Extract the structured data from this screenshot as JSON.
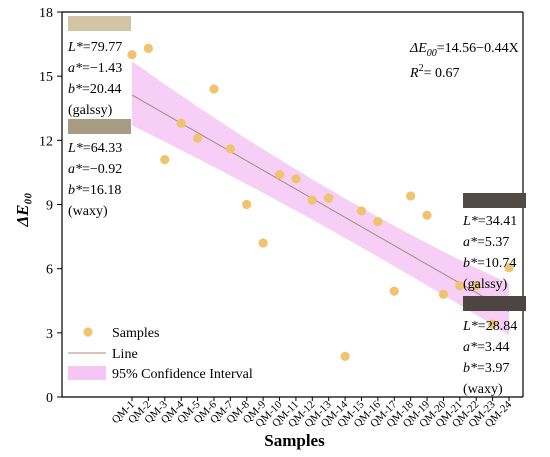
{
  "chart_data": {
    "type": "scatter",
    "xlabel": "Samples",
    "ylabel": "ΔE₀₀",
    "ylim": [
      0,
      18
    ],
    "yticks": [
      0,
      3,
      6,
      9,
      12,
      15,
      18
    ],
    "categories": [
      "QM-1",
      "QM-2",
      "QM-3",
      "QM-4",
      "QM-5",
      "QM-6",
      "QM-7",
      "QM-8",
      "QM-9",
      "QM-10",
      "QM-11",
      "QM-12",
      "QM-13",
      "QM-14",
      "QM-15",
      "QM-16",
      "QM-17",
      "QM-18",
      "QM-19",
      "QM-20",
      "QM-21",
      "QM-22",
      "QM-23",
      "QM-24"
    ],
    "series": [
      {
        "name": "Samples",
        "color": "#f0c36e",
        "x": [
          1,
          2,
          3,
          4,
          5,
          6,
          7,
          8,
          9,
          10,
          11,
          12,
          13,
          14,
          15,
          16,
          17,
          18,
          19,
          20,
          21,
          22,
          23,
          24
        ],
        "values": [
          16.0,
          16.3,
          11.1,
          12.8,
          12.1,
          14.4,
          11.6,
          9.0,
          7.2,
          10.4,
          10.2,
          9.2,
          9.3,
          1.9,
          8.7,
          8.2,
          4.95,
          9.4,
          8.5,
          4.8,
          5.2,
          5.2,
          3.4,
          6.05
        ]
      }
    ],
    "fit": {
      "name": "Line",
      "intercept": 14.56,
      "slope": -0.44,
      "color": "#a88a7a"
    },
    "confidence_band": {
      "name": "95% Confidence Interval",
      "color": "#f5c6f5",
      "lower_start": 12.7,
      "upper_start": 15.7,
      "lower_end": 2.9,
      "upper_end": 5.3
    },
    "equation": {
      "prefix": "ΔE",
      "sub": "00",
      "rest": "=14.56−0.44X"
    },
    "r2": {
      "prefix": "R",
      "sup": "2",
      "rest": "= 0.67"
    },
    "legend": {
      "position": "bottom-left"
    },
    "annotations": [
      {
        "swatch": "#d2c5a4",
        "lines": [
          [
            "L*",
            "=79.77"
          ],
          [
            "a*",
            "=−1.43"
          ],
          [
            "b*",
            "=20.44"
          ],
          [
            "",
            "(galssy)"
          ]
        ]
      },
      {
        "swatch": "#a69c83",
        "lines": [
          [
            "L*",
            "=64.33"
          ],
          [
            "a*",
            "=−0.92"
          ],
          [
            "b*",
            "=16.18"
          ],
          [
            "",
            "(waxy)"
          ]
        ]
      },
      {
        "swatch": "#514a45",
        "lines": [
          [
            "L*",
            "=34.41"
          ],
          [
            "a*",
            "=5.37"
          ],
          [
            "b*",
            "=10.74"
          ],
          [
            "",
            "(galssy)"
          ]
        ]
      },
      {
        "swatch": "#4d4541",
        "lines": [
          [
            "L*",
            "=28.84"
          ],
          [
            "a*",
            "=3.44"
          ],
          [
            "b*",
            "=3.97"
          ],
          [
            "",
            "(waxy)"
          ]
        ]
      }
    ]
  }
}
